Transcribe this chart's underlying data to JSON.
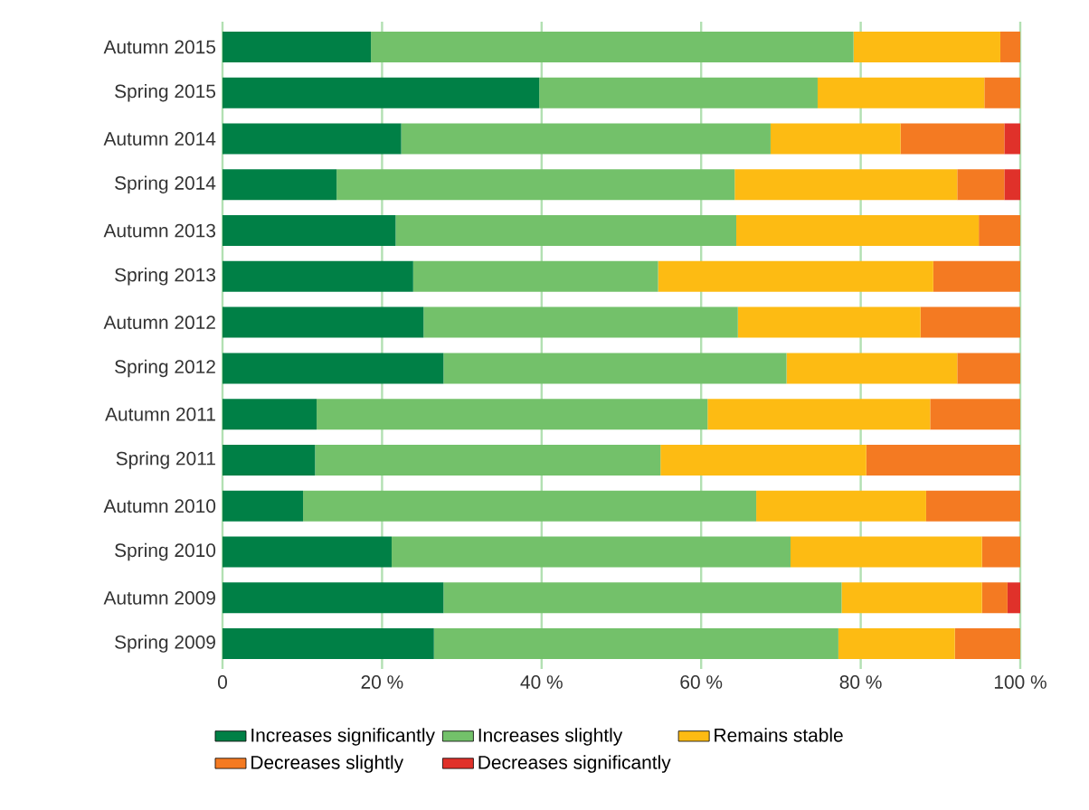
{
  "chart_data": {
    "type": "bar",
    "orientation": "horizontal",
    "stacked": true,
    "categories": [
      "Autumn 2015",
      "Spring 2015",
      "Autumn 2014",
      "Spring 2014",
      "Autumn 2013",
      "Spring 2013",
      "Autumn 2012",
      "Spring 2012",
      "Autumn 2011",
      "Spring 2011",
      "Autumn 2010",
      "Spring 2010",
      "Autumn 2009",
      "Spring 2009"
    ],
    "series": [
      {
        "name": "Increases significantly",
        "color": "#008046",
        "values": [
          18.6,
          39.7,
          22.4,
          14.3,
          21.7,
          23.9,
          25.2,
          27.7,
          11.8,
          11.6,
          10.1,
          21.2,
          27.7,
          26.5
        ]
      },
      {
        "name": "Increases slightly",
        "color": "#73c16a",
        "values": [
          60.5,
          34.9,
          46.3,
          49.9,
          42.7,
          30.7,
          39.4,
          43.0,
          49.0,
          43.3,
          56.8,
          50.0,
          49.9,
          50.7
        ]
      },
      {
        "name": "Remains stable",
        "color": "#fdbb13",
        "values": [
          18.4,
          20.9,
          16.3,
          27.9,
          30.4,
          34.5,
          22.9,
          21.4,
          27.9,
          25.8,
          21.3,
          24.0,
          17.6,
          14.6
        ]
      },
      {
        "name": "Decreases slightly",
        "color": "#f47a22",
        "values": [
          2.5,
          4.5,
          13.0,
          5.9,
          5.2,
          10.9,
          12.5,
          7.9,
          11.3,
          19.3,
          11.8,
          4.8,
          3.2,
          8.2
        ]
      },
      {
        "name": "Decreases significantly",
        "color": "#e0312a",
        "values": [
          null,
          null,
          2.0,
          2.0,
          null,
          null,
          null,
          null,
          null,
          null,
          null,
          null,
          1.6,
          null
        ]
      }
    ],
    "xlim": [
      0,
      100
    ],
    "xticks": [
      0,
      {
        "value": 20,
        "label": "20 %"
      },
      {
        "value": 40,
        "label": "40 %"
      },
      {
        "value": 60,
        "label": "60 %"
      },
      {
        "value": 80,
        "label": "80 %"
      },
      {
        "value": 100,
        "label": "100 %"
      }
    ],
    "grid": "x",
    "legend": "bottom"
  }
}
